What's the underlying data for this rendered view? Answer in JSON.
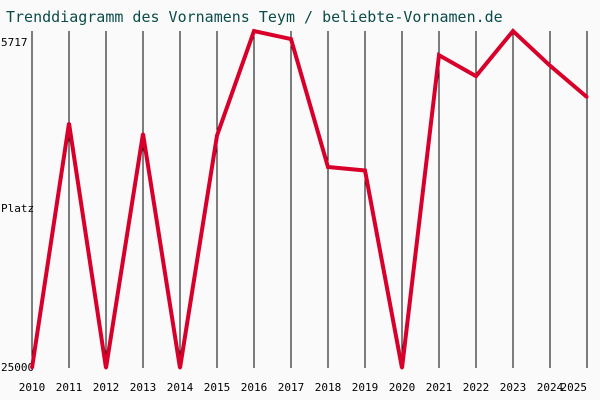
{
  "chart_data": {
    "type": "line",
    "title": "Trenddiagramm des Vornamens Teym / beliebte-Vornamen.de",
    "ylabel": "Platz",
    "y_tick_top": "5717",
    "y_tick_bottom": "25000",
    "ylim": [
      25000,
      5717
    ],
    "y_inverted": true,
    "grid": "vertical",
    "line_color": "#d8002a",
    "title_color": "#0b4c4a",
    "x": [
      "2010",
      "2011",
      "2012",
      "2013",
      "2014",
      "2015",
      "2016",
      "2017",
      "2018",
      "2019",
      "2020",
      "2021",
      "2022",
      "2023",
      "2024",
      "2025"
    ],
    "values": [
      25000,
      11000,
      25000,
      11600,
      25000,
      11700,
      5720,
      6180,
      13500,
      13700,
      25000,
      7100,
      8300,
      5717,
      7700,
      9500
    ]
  }
}
